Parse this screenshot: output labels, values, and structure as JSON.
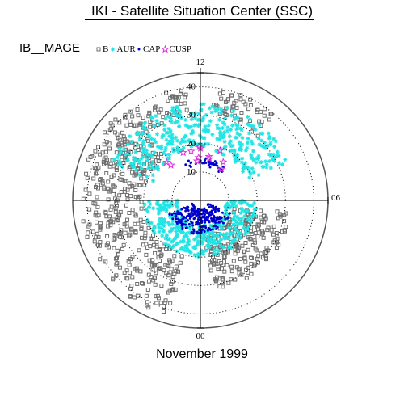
{
  "header": {
    "title": "IKI - Satellite Situation Center (SSC)"
  },
  "footer": {
    "caption": "November 1999"
  },
  "colors": {
    "background": "#ffffff",
    "ring": "#555555",
    "grid": "#000000",
    "gray_points": "#6e6e6e",
    "cyan_points": "#22e4e4",
    "blue_points": "#0000cc",
    "magenta_points": "#e033e0"
  },
  "chart_data": {
    "type": "scatter",
    "projection": "polar (magnetic local time vs. colatitude)",
    "dataset_label": "IB__MAGE",
    "legend": [
      {
        "label": "B",
        "marker": "gray-square-icon"
      },
      {
        "label": "AUR",
        "marker": "cyan-asterisk-icon"
      },
      {
        "label": "CAP",
        "marker": "blue-dot-icon"
      },
      {
        "label": "CUSP",
        "marker": "magenta-star-icon"
      }
    ],
    "mlt_tick_labels": {
      "top": "12",
      "right": "06",
      "bottom": "00"
    },
    "colatitude_rings": [
      "10",
      "20",
      "30",
      "40"
    ],
    "radial_range": [
      0,
      45
    ],
    "grid": "dotted",
    "series": [
      {
        "label": "B",
        "marker": "gray-square-icon",
        "regions": [
          {
            "mlt": [
              0.5,
              5.5
            ],
            "colat": [
              12,
              32
            ]
          },
          {
            "mlt": [
              14.5,
              23
            ],
            "colat": [
              20,
              42
            ]
          },
          {
            "mlt": [
              12.5,
              14.8
            ],
            "colat": [
              30,
              40
            ]
          },
          {
            "mlt": [
              9.2,
              11.5
            ],
            "colat": [
              30,
              40
            ]
          }
        ]
      },
      {
        "label": "AUR",
        "marker": "cyan-asterisk-icon",
        "regions": [
          {
            "mlt": [
              0,
              6.0
            ],
            "colat": [
              9,
              20
            ]
          },
          {
            "mlt": [
              18,
              24
            ],
            "colat": [
              8,
              20
            ]
          },
          {
            "mlt": [
              7.5,
              16.5
            ],
            "colat": [
              18,
              34
            ]
          }
        ]
      },
      {
        "label": "CAP",
        "marker": "blue-dot-icon",
        "regions": [
          {
            "mlt": [
              19.5,
              24
            ],
            "colat": [
              3,
              12
            ]
          },
          {
            "mlt": [
              0,
              4.5
            ],
            "colat": [
              3,
              12
            ]
          },
          {
            "mlt": [
              9.5,
              13.5
            ],
            "colat": [
              12,
              15
            ]
          }
        ]
      },
      {
        "label": "CUSP",
        "marker": "magenta-star-icon",
        "regions": [
          {
            "mlt": [
              9.5,
              14.8
            ],
            "colat": [
              13,
              19
            ]
          }
        ]
      }
    ]
  }
}
